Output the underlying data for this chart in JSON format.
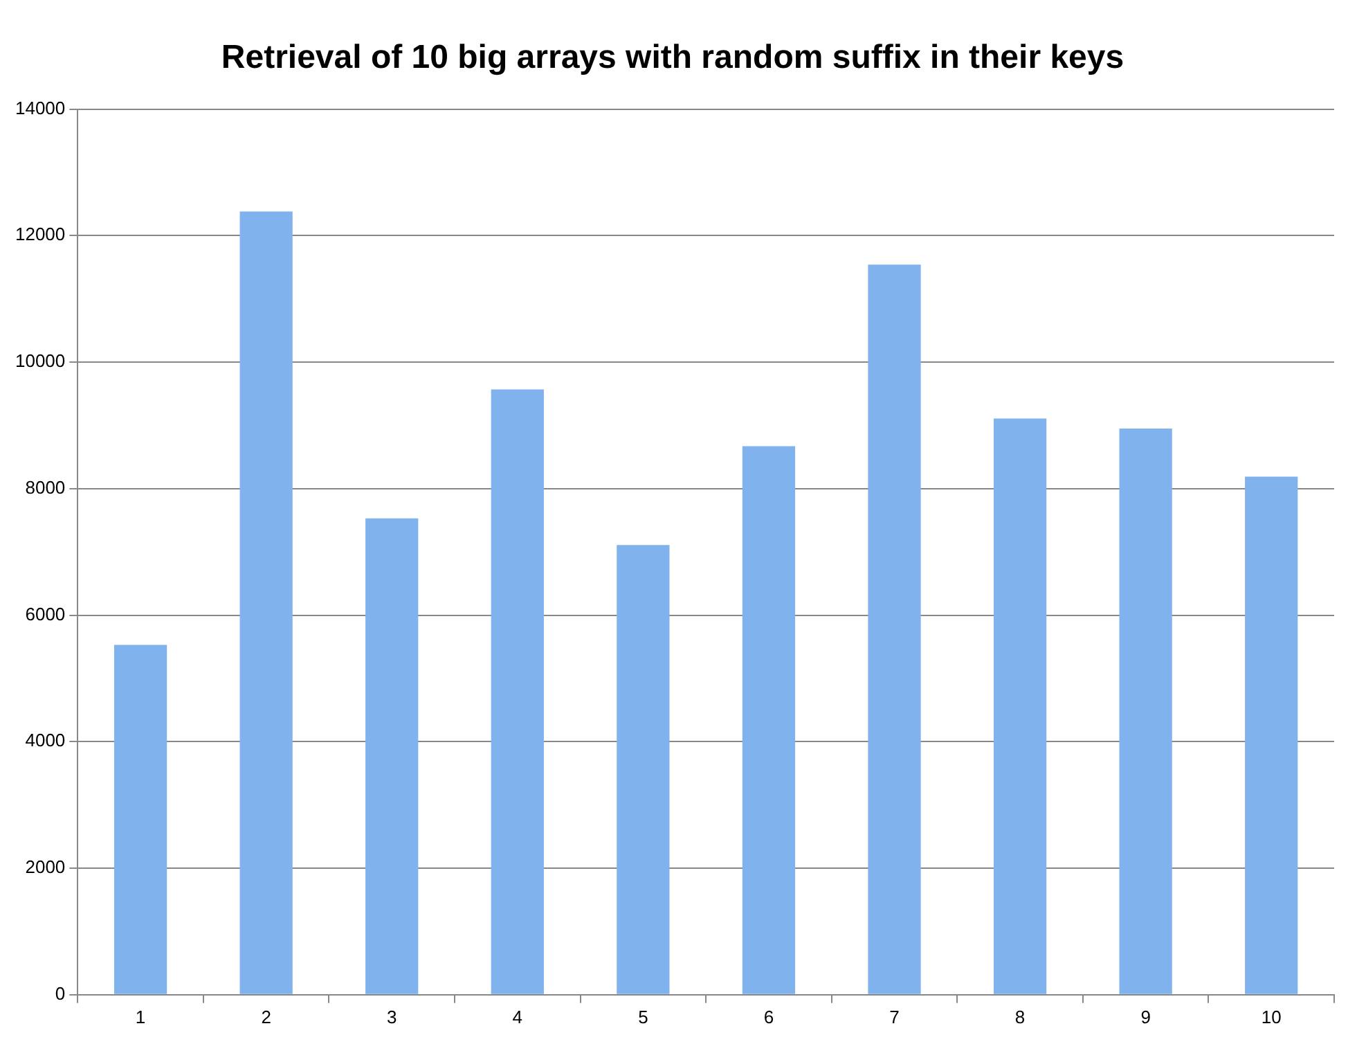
{
  "chart_data": {
    "type": "bar",
    "title": "Retrieval of 10 big arrays with random suffix in their keys",
    "categories": [
      "1",
      "2",
      "3",
      "4",
      "5",
      "6",
      "7",
      "8",
      "9",
      "10"
    ],
    "values": [
      5530,
      12380,
      7530,
      9570,
      7110,
      8670,
      11540,
      9110,
      8950,
      8190
    ],
    "color": "#80b2ee",
    "ylim": [
      0,
      14000
    ],
    "yticks": [
      0,
      2000,
      4000,
      6000,
      8000,
      10000,
      12000,
      14000
    ],
    "grid": "y",
    "legend": false
  }
}
